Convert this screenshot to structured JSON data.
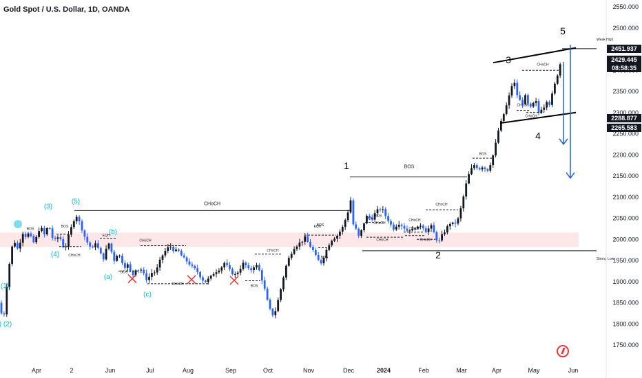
{
  "header": {
    "title": "Gold Spot / U.S. Dollar, 1D, OANDA"
  },
  "colors": {
    "candle_up": "#131722",
    "candle_down": "#2962ff",
    "zone": "#fde7e9",
    "label_teal": "#00bcd4",
    "arrow_blue": "#1e63d6",
    "price_tag": "#131722"
  },
  "icons": {
    "watermark": "tradingview-logo-icon",
    "dot": "teal-circle-icon"
  },
  "chart_data": {
    "type": "candlestick",
    "title": "Gold Spot / U.S. Dollar, 1D, OANDA",
    "ylim": [
      1700,
      2575
    ],
    "y_ticks": [
      "2550.000",
      "2500.000",
      "2450.000",
      "2400.000",
      "2350.000",
      "2300.000",
      "2250.000",
      "2200.000",
      "2150.000",
      "2100.000",
      "2050.000",
      "2000.000",
      "1950.000",
      "1900.000",
      "1850.000",
      "1800.000",
      "1750.000"
    ],
    "x_ticks": [
      "Apr",
      "2",
      "Jun",
      "Jul",
      "Aug",
      "Sep",
      "Oct",
      "Nov",
      "Dec",
      "2024",
      "Feb",
      "Mar",
      "Apr",
      "May",
      "Jun"
    ],
    "price_tags": [
      "2451.937",
      "2429.445",
      "08:58:35",
      "2288.877",
      "2265.583"
    ],
    "path": [
      [
        0,
        1850
      ],
      [
        3,
        1812
      ],
      [
        6,
        1825
      ],
      [
        9,
        1880
      ],
      [
        12,
        1920
      ],
      [
        15,
        1960
      ],
      [
        18,
        1985
      ],
      [
        22,
        1995
      ],
      [
        26,
        1975
      ],
      [
        30,
        2000
      ],
      [
        34,
        2020
      ],
      [
        38,
        2005
      ],
      [
        42,
        2015
      ],
      [
        46,
        2000
      ],
      [
        50,
        1990
      ],
      [
        54,
        2010
      ],
      [
        58,
        2030
      ],
      [
        62,
        2020
      ],
      [
        66,
        2005
      ],
      [
        70,
        2040
      ],
      [
        74,
        2015
      ],
      [
        78,
        1995
      ],
      [
        82,
        2000
      ],
      [
        86,
        2010
      ],
      [
        90,
        1990
      ],
      [
        94,
        1975
      ],
      [
        98,
        2000
      ],
      [
        102,
        2020
      ],
      [
        106,
        2040
      ],
      [
        110,
        2060
      ],
      [
        114,
        2045
      ],
      [
        118,
        2030
      ],
      [
        122,
        2010
      ],
      [
        126,
        1995
      ],
      [
        130,
        1985
      ],
      [
        134,
        1975
      ],
      [
        138,
        1995
      ],
      [
        142,
        1980
      ],
      [
        146,
        1965
      ],
      [
        150,
        1955
      ],
      [
        154,
        1975
      ],
      [
        158,
        1990
      ],
      [
        162,
        1970
      ],
      [
        166,
        1950
      ],
      [
        170,
        1965
      ],
      [
        174,
        1960
      ],
      [
        178,
        1945
      ],
      [
        182,
        1935
      ],
      [
        186,
        1940
      ],
      [
        190,
        1920
      ],
      [
        194,
        1915
      ],
      [
        198,
        1935
      ],
      [
        202,
        1925
      ],
      [
        206,
        1930
      ],
      [
        210,
        1910
      ],
      [
        214,
        1905
      ],
      [
        218,
        1915
      ],
      [
        222,
        1925
      ],
      [
        226,
        1920
      ],
      [
        230,
        1940
      ],
      [
        234,
        1955
      ],
      [
        238,
        1970
      ],
      [
        242,
        1975
      ],
      [
        246,
        1985
      ],
      [
        250,
        1980
      ],
      [
        254,
        1970
      ],
      [
        258,
        1975
      ],
      [
        262,
        1965
      ],
      [
        266,
        1955
      ],
      [
        270,
        1950
      ],
      [
        274,
        1945
      ],
      [
        278,
        1935
      ],
      [
        282,
        1930
      ],
      [
        286,
        1925
      ],
      [
        290,
        1915
      ],
      [
        294,
        1905
      ],
      [
        298,
        1900
      ],
      [
        302,
        1905
      ],
      [
        306,
        1910
      ],
      [
        310,
        1920
      ],
      [
        314,
        1925
      ],
      [
        318,
        1930
      ],
      [
        322,
        1935
      ],
      [
        326,
        1945
      ],
      [
        330,
        1935
      ],
      [
        334,
        1925
      ],
      [
        338,
        1920
      ],
      [
        342,
        1915
      ],
      [
        346,
        1925
      ],
      [
        350,
        1935
      ],
      [
        354,
        1945
      ],
      [
        358,
        1935
      ],
      [
        362,
        1925
      ],
      [
        366,
        1930
      ],
      [
        370,
        1940
      ],
      [
        374,
        1935
      ],
      [
        378,
        1920
      ],
      [
        382,
        1895
      ],
      [
        386,
        1870
      ],
      [
        390,
        1840
      ],
      [
        394,
        1825
      ],
      [
        398,
        1820
      ],
      [
        402,
        1845
      ],
      [
        406,
        1870
      ],
      [
        410,
        1900
      ],
      [
        414,
        1930
      ],
      [
        418,
        1950
      ],
      [
        422,
        1965
      ],
      [
        426,
        1980
      ],
      [
        430,
        1985
      ],
      [
        434,
        1990
      ],
      [
        438,
        1995
      ],
      [
        442,
        2005
      ],
      [
        446,
        1995
      ],
      [
        450,
        1985
      ],
      [
        454,
        1975
      ],
      [
        458,
        1960
      ],
      [
        462,
        1950
      ],
      [
        466,
        1945
      ],
      [
        470,
        1960
      ],
      [
        474,
        1975
      ],
      [
        478,
        1990
      ],
      [
        482,
        2000
      ],
      [
        486,
        2005
      ],
      [
        490,
        2010
      ],
      [
        494,
        2020
      ],
      [
        498,
        2030
      ],
      [
        502,
        2050
      ],
      [
        506,
        2070
      ],
      [
        508,
        2135
      ],
      [
        510,
        2050
      ],
      [
        514,
        2030
      ],
      [
        518,
        2020
      ],
      [
        522,
        2000
      ],
      [
        526,
        2030
      ],
      [
        530,
        2045
      ],
      [
        534,
        2060
      ],
      [
        538,
        2045
      ],
      [
        542,
        2055
      ],
      [
        546,
        2065
      ],
      [
        550,
        2070
      ],
      [
        554,
        2075
      ],
      [
        558,
        2060
      ],
      [
        562,
        2050
      ],
      [
        566,
        2040
      ],
      [
        570,
        2025
      ],
      [
        574,
        2030
      ],
      [
        578,
        2040
      ],
      [
        582,
        2035
      ],
      [
        586,
        2030
      ],
      [
        590,
        2020
      ],
      [
        594,
        2025
      ],
      [
        598,
        2020
      ],
      [
        602,
        2030
      ],
      [
        606,
        2025
      ],
      [
        610,
        2035
      ],
      [
        614,
        2030
      ],
      [
        618,
        2020
      ],
      [
        622,
        2025
      ],
      [
        626,
        2030
      ],
      [
        630,
        2015
      ],
      [
        634,
        2000
      ],
      [
        638,
        1995
      ],
      [
        642,
        2010
      ],
      [
        646,
        2020
      ],
      [
        650,
        2030
      ],
      [
        654,
        2040
      ],
      [
        658,
        2035
      ],
      [
        662,
        2040
      ],
      [
        666,
        2050
      ],
      [
        670,
        2080
      ],
      [
        674,
        2110
      ],
      [
        678,
        2140
      ],
      [
        682,
        2160
      ],
      [
        686,
        2170
      ],
      [
        690,
        2180
      ],
      [
        694,
        2165
      ],
      [
        698,
        2170
      ],
      [
        702,
        2175
      ],
      [
        706,
        2160
      ],
      [
        710,
        2170
      ],
      [
        714,
        2190
      ],
      [
        718,
        2210
      ],
      [
        722,
        2250
      ],
      [
        726,
        2270
      ],
      [
        730,
        2290
      ],
      [
        734,
        2310
      ],
      [
        738,
        2330
      ],
      [
        742,
        2360
      ],
      [
        746,
        2375
      ],
      [
        750,
        2345
      ],
      [
        754,
        2330
      ],
      [
        758,
        2320
      ],
      [
        762,
        2340
      ],
      [
        766,
        2320
      ],
      [
        770,
        2310
      ],
      [
        774,
        2320
      ],
      [
        778,
        2325
      ],
      [
        782,
        2300
      ],
      [
        786,
        2310
      ],
      [
        790,
        2315
      ],
      [
        794,
        2330
      ],
      [
        798,
        2320
      ],
      [
        802,
        2345
      ],
      [
        806,
        2370
      ],
      [
        810,
        2395
      ],
      [
        814,
        2420
      ],
      [
        816,
        2430
      ]
    ],
    "zone_range": [
      1982,
      2016
    ],
    "annotations": {
      "wave_labels": [
        {
          "t": "(1)",
          "x": 7,
          "y": 1885,
          "c": "teal"
        },
        {
          "t": ") (2)",
          "x": 8,
          "y": 1795,
          "c": "teal"
        },
        {
          "t": "(3)",
          "x": 70,
          "y": 2073,
          "c": "teal"
        },
        {
          "t": "(4)",
          "x": 80,
          "y": 1960,
          "c": "teal"
        },
        {
          "t": "(5)",
          "x": 110,
          "y": 2085,
          "c": "teal"
        },
        {
          "t": "(a)",
          "x": 157,
          "y": 1906,
          "c": "teal"
        },
        {
          "t": "(b)",
          "x": 164,
          "y": 2013,
          "c": "teal"
        },
        {
          "t": "(c)",
          "x": 214,
          "y": 1865,
          "c": "teal"
        },
        {
          "t": "1",
          "x": 503,
          "y": 2166,
          "c": "dark"
        },
        {
          "t": "2",
          "x": 636,
          "y": 1955,
          "c": "dark"
        },
        {
          "t": "3",
          "x": 738,
          "y": 2417,
          "c": "dark"
        },
        {
          "t": "4",
          "x": 781,
          "y": 2237,
          "c": "dark"
        },
        {
          "t": "5",
          "x": 817,
          "y": 2485,
          "c": "dark"
        }
      ],
      "small_labels": [
        {
          "t": "BOS",
          "x": 44,
          "y": 2022
        },
        {
          "t": "BOS",
          "x": 94,
          "y": 2028
        },
        {
          "t": "CHoCH",
          "x": 108,
          "y": 1960
        },
        {
          "t": "EQH",
          "x": 154,
          "y": 2007
        },
        {
          "t": "BOS",
          "x": 180,
          "y": 1920
        },
        {
          "t": "CHoCH",
          "x": 211,
          "y": 1995
        },
        {
          "t": "CHoCH",
          "x": 258,
          "y": 1892
        },
        {
          "t": "CHoCH",
          "x": 396,
          "y": 1971
        },
        {
          "t": "BOS",
          "x": 369,
          "y": 1887
        },
        {
          "t": "BOS",
          "x": 471,
          "y": 1955
        },
        {
          "t": "EQH",
          "x": 461,
          "y": 2028
        },
        {
          "t": "BOS",
          "x": 465,
          "y": 2031
        },
        {
          "t": "BOS",
          "x": 537,
          "y": 2047
        },
        {
          "t": "BOS",
          "x": 549,
          "y": 2053
        },
        {
          "t": "CHoCH",
          "x": 551,
          "y": 2036
        },
        {
          "t": "CHoCH",
          "x": 555,
          "y": 1996
        },
        {
          "t": "CHoCH",
          "x": 602,
          "y": 2043
        },
        {
          "t": "CHoCH",
          "x": 602,
          "y": 2023
        },
        {
          "t": "CHoCH",
          "x": 618,
          "y": 1996
        },
        {
          "t": "CHoCH",
          "x": 641,
          "y": 2080
        },
        {
          "t": "BOS",
          "x": 701,
          "y": 2200
        },
        {
          "t": "CHoCH",
          "x": 788,
          "y": 2411
        },
        {
          "t": "CHoCH",
          "x": 759,
          "y": 2315
        },
        {
          "t": "CHoCH",
          "x": 771,
          "y": 2289
        }
      ],
      "big_labels": [
        {
          "t": "CHoCH",
          "x": 308,
          "y": 2081
        },
        {
          "t": "BOS",
          "x": 594,
          "y": 2169
        },
        {
          "t": "Weak High",
          "x": 866,
          "y": 2470
        },
        {
          "t": "Strong Low",
          "x": 866,
          "y": 1952
        }
      ],
      "lines": [
        {
          "x1": 108,
          "y1": 2068,
          "x2": 508,
          "y2": 2068
        },
        {
          "x1": 508,
          "y1": 2148,
          "x2": 678,
          "y2": 2148
        },
        {
          "x1": 526,
          "y1": 1973,
          "x2": 866,
          "y2": 1973
        },
        {
          "x1": 816,
          "y1": 2451,
          "x2": 866,
          "y2": 2451
        }
      ],
      "dashed": [
        {
          "x1": 82,
          "y1": 2012,
          "x2": 104,
          "y2": 2012
        },
        {
          "x1": 86,
          "y1": 1983,
          "x2": 118,
          "y2": 1983
        },
        {
          "x1": 145,
          "y1": 2002,
          "x2": 168,
          "y2": 2002
        },
        {
          "x1": 172,
          "y1": 1925,
          "x2": 200,
          "y2": 1925
        },
        {
          "x1": 204,
          "y1": 1985,
          "x2": 270,
          "y2": 1985
        },
        {
          "x1": 214,
          "y1": 1895,
          "x2": 304,
          "y2": 1895
        },
        {
          "x1": 370,
          "y1": 1965,
          "x2": 410,
          "y2": 1965
        },
        {
          "x1": 356,
          "y1": 1902,
          "x2": 378,
          "y2": 1902
        },
        {
          "x1": 442,
          "y1": 2010,
          "x2": 488,
          "y2": 2010
        },
        {
          "x1": 462,
          "y1": 1980,
          "x2": 478,
          "y2": 1980
        },
        {
          "x1": 530,
          "y1": 2040,
          "x2": 556,
          "y2": 2040
        },
        {
          "x1": 532,
          "y1": 2005,
          "x2": 586,
          "y2": 2005
        },
        {
          "x1": 586,
          "y1": 2017,
          "x2": 615,
          "y2": 2017
        },
        {
          "x1": 588,
          "y1": 2009,
          "x2": 616,
          "y2": 2009
        },
        {
          "x1": 605,
          "y1": 2000,
          "x2": 632,
          "y2": 2000
        },
        {
          "x1": 618,
          "y1": 2070,
          "x2": 665,
          "y2": 2070
        },
        {
          "x1": 686,
          "y1": 2192,
          "x2": 716,
          "y2": 2192
        },
        {
          "x1": 758,
          "y1": 2400,
          "x2": 814,
          "y2": 2400
        },
        {
          "x1": 750,
          "y1": 2305,
          "x2": 770,
          "y2": 2305
        },
        {
          "x1": 764,
          "y1": 2300,
          "x2": 790,
          "y2": 2300
        }
      ],
      "trend_lines": [
        {
          "x1": 716,
          "y1": 2418,
          "x2": 836,
          "y2": 2453
        },
        {
          "x1": 726,
          "y1": 2275,
          "x2": 836,
          "y2": 2300
        }
      ],
      "crosses": [
        {
          "x": 192,
          "y": 1907
        },
        {
          "x": 278,
          "y": 1905
        },
        {
          "x": 340,
          "y": 1903
        }
      ],
      "arrows": [
        {
          "x": 818,
          "y1": 2420,
          "y2": 2225
        },
        {
          "x": 828,
          "y1": 2460,
          "y2": 2145
        }
      ],
      "teal_dot": {
        "x": 26,
        "y": 2036
      }
    }
  }
}
